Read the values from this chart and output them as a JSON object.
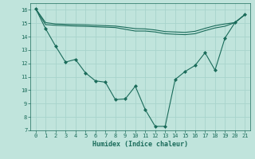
{
  "xlabel": "Humidex (Indice chaleur)",
  "xlim": [
    -0.5,
    21.5
  ],
  "ylim": [
    7,
    16.5
  ],
  "yticks": [
    7,
    8,
    9,
    10,
    11,
    12,
    13,
    14,
    15,
    16
  ],
  "xticks": [
    0,
    1,
    2,
    3,
    4,
    5,
    6,
    7,
    8,
    9,
    10,
    11,
    12,
    13,
    14,
    15,
    16,
    17,
    18,
    19,
    20,
    21
  ],
  "background_color": "#c0e4dc",
  "grid_color": "#a8d4cc",
  "line_color": "#1a6b5a",
  "line1_x": [
    0,
    1,
    2,
    3,
    4,
    5,
    6,
    7,
    8,
    9,
    10,
    11,
    12,
    13,
    14,
    15,
    16,
    17,
    18,
    19,
    20,
    21
  ],
  "line1_y": [
    16.1,
    14.9,
    14.85,
    14.82,
    14.79,
    14.77,
    14.74,
    14.71,
    14.68,
    14.55,
    14.42,
    14.42,
    14.35,
    14.22,
    14.18,
    14.15,
    14.22,
    14.45,
    14.65,
    14.78,
    15.05,
    15.65
  ],
  "line2_x": [
    0,
    1,
    2,
    3,
    4,
    5,
    6,
    7,
    8,
    9,
    10,
    11,
    12,
    13,
    14,
    15,
    16,
    17,
    18,
    19,
    20,
    21
  ],
  "line2_y": [
    16.1,
    15.05,
    14.95,
    14.92,
    14.9,
    14.88,
    14.85,
    14.82,
    14.79,
    14.7,
    14.6,
    14.58,
    14.5,
    14.38,
    14.35,
    14.32,
    14.4,
    14.62,
    14.82,
    14.95,
    15.05,
    15.65
  ],
  "line3_x": [
    0,
    1,
    2,
    3,
    4,
    5,
    6,
    7,
    8,
    9,
    10,
    11,
    12,
    13,
    14,
    15,
    16,
    17,
    18,
    19,
    20,
    21
  ],
  "line3_y": [
    16.1,
    14.6,
    13.3,
    12.1,
    12.3,
    11.3,
    10.7,
    10.6,
    9.3,
    9.35,
    10.3,
    8.55,
    7.3,
    7.3,
    10.8,
    11.4,
    11.85,
    12.8,
    11.5,
    13.9,
    15.05,
    15.65
  ]
}
